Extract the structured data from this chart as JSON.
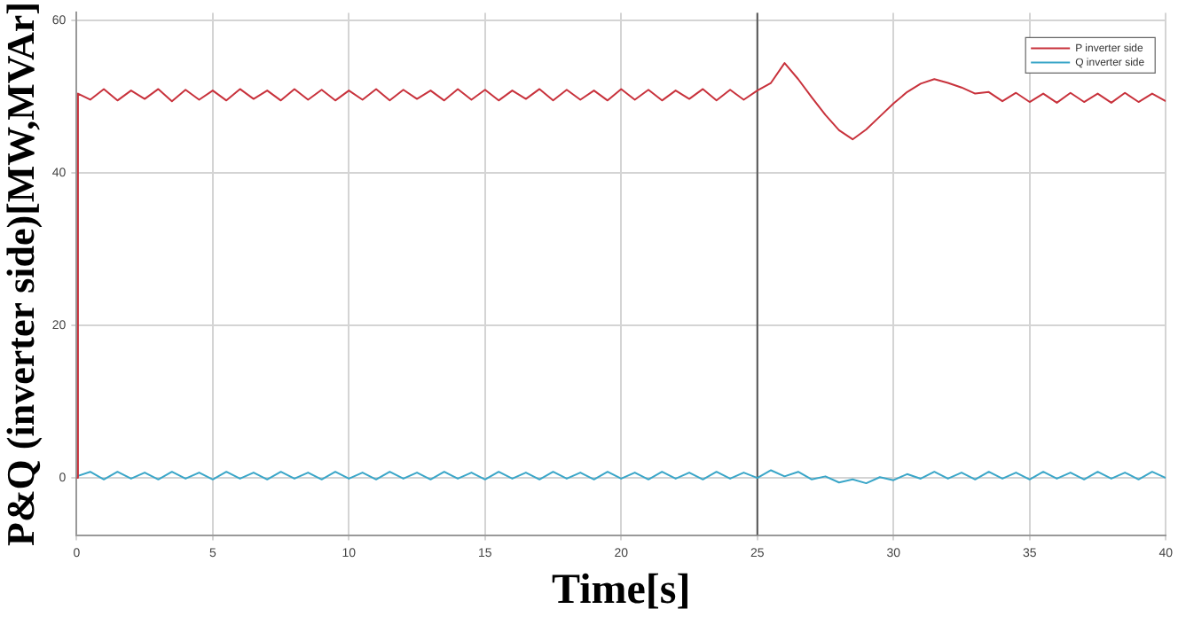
{
  "chart_data": {
    "type": "line",
    "xlabel": "Time[s]",
    "ylabel": "P&Q (inverter side)[MW,MVAr]",
    "xlim": [
      0,
      40
    ],
    "xticks": [
      0,
      5,
      10,
      15,
      20,
      25,
      30,
      35,
      40
    ],
    "ylim": [
      -7.5,
      61
    ],
    "yticks": [
      0,
      20,
      40,
      60
    ],
    "grid": true,
    "ref_lines": [
      {
        "axis": "x",
        "value": 25,
        "color": "#555555"
      }
    ],
    "legend": "top right",
    "marker": "none",
    "line_style": "solid",
    "series": [
      {
        "name": "P inverter side",
        "color": "#c8323c",
        "x": [
          0,
          0.05,
          0.5,
          1,
          1.5,
          2,
          2.5,
          3,
          3.5,
          4,
          4.5,
          5,
          5.5,
          6,
          6.5,
          7,
          7.5,
          8,
          8.5,
          9,
          9.5,
          10,
          10.5,
          11,
          11.5,
          12,
          12.5,
          13,
          13.5,
          14,
          14.5,
          15,
          15.5,
          16,
          16.5,
          17,
          17.5,
          18,
          18.5,
          19,
          19.5,
          20,
          20.5,
          21,
          21.5,
          22,
          22.5,
          23,
          23.5,
          24,
          24.5,
          25,
          25.5,
          26,
          26.5,
          27,
          27.5,
          28,
          28.5,
          29,
          29.5,
          30,
          30.5,
          31,
          31.5,
          32,
          32.5,
          33,
          33.5,
          34,
          34.5,
          35,
          35.5,
          36,
          36.5,
          37,
          37.5,
          38,
          38.5,
          39,
          39.5,
          40
        ],
        "values": [
          0,
          50.4,
          49.6,
          51,
          49.5,
          50.8,
          49.7,
          51,
          49.4,
          50.9,
          49.6,
          50.8,
          49.5,
          51,
          49.7,
          50.8,
          49.5,
          51,
          49.6,
          50.9,
          49.5,
          50.8,
          49.6,
          51,
          49.5,
          50.9,
          49.7,
          50.8,
          49.5,
          51,
          49.6,
          50.9,
          49.5,
          50.8,
          49.7,
          51,
          49.5,
          50.9,
          49.6,
          50.8,
          49.5,
          51,
          49.6,
          50.9,
          49.5,
          50.8,
          49.7,
          51,
          49.5,
          50.9,
          49.6,
          50.8,
          51.8,
          54.4,
          52.3,
          49.9,
          47.6,
          45.6,
          44.4,
          45.7,
          47.4,
          49.1,
          50.6,
          51.7,
          52.3,
          51.8,
          51.2,
          50.4,
          50.6,
          49.4,
          50.5,
          49.3,
          50.4,
          49.2,
          50.5,
          49.3,
          50.4,
          49.2,
          50.5,
          49.3,
          50.4,
          49.4
        ]
      },
      {
        "name": "Q inverter side",
        "color": "#3aa6c8",
        "x": [
          0,
          0.5,
          1,
          1.5,
          2,
          2.5,
          3,
          3.5,
          4,
          4.5,
          5,
          5.5,
          6,
          6.5,
          7,
          7.5,
          8,
          8.5,
          9,
          9.5,
          10,
          10.5,
          11,
          11.5,
          12,
          12.5,
          13,
          13.5,
          14,
          14.5,
          15,
          15.5,
          16,
          16.5,
          17,
          17.5,
          18,
          18.5,
          19,
          19.5,
          20,
          20.5,
          21,
          21.5,
          22,
          22.5,
          23,
          23.5,
          24,
          24.5,
          25,
          25.5,
          26,
          26.5,
          27,
          27.5,
          28,
          28.5,
          29,
          29.5,
          30,
          30.5,
          31,
          31.5,
          32,
          32.5,
          33,
          33.5,
          34,
          34.5,
          35,
          35.5,
          36,
          36.5,
          37,
          37.5,
          38,
          38.5,
          39,
          39.5,
          40
        ],
        "values": [
          0.2,
          0.8,
          -0.2,
          0.8,
          -0.1,
          0.7,
          -0.2,
          0.8,
          -0.1,
          0.7,
          -0.2,
          0.8,
          -0.1,
          0.7,
          -0.2,
          0.8,
          -0.1,
          0.7,
          -0.2,
          0.8,
          -0.1,
          0.7,
          -0.2,
          0.8,
          -0.1,
          0.7,
          -0.2,
          0.8,
          -0.1,
          0.7,
          -0.2,
          0.8,
          -0.1,
          0.7,
          -0.2,
          0.8,
          -0.1,
          0.7,
          -0.2,
          0.8,
          -0.1,
          0.7,
          -0.2,
          0.8,
          -0.1,
          0.7,
          -0.2,
          0.8,
          -0.1,
          0.7,
          0,
          1,
          0.2,
          0.8,
          -0.2,
          0.2,
          -0.6,
          -0.2,
          -0.7,
          0.1,
          -0.3,
          0.5,
          -0.1,
          0.8,
          -0.1,
          0.7,
          -0.2,
          0.8,
          -0.1,
          0.7,
          -0.2,
          0.8,
          -0.1,
          0.7,
          -0.2,
          0.8,
          -0.1,
          0.7,
          -0.2,
          0.8,
          0
        ]
      }
    ]
  }
}
